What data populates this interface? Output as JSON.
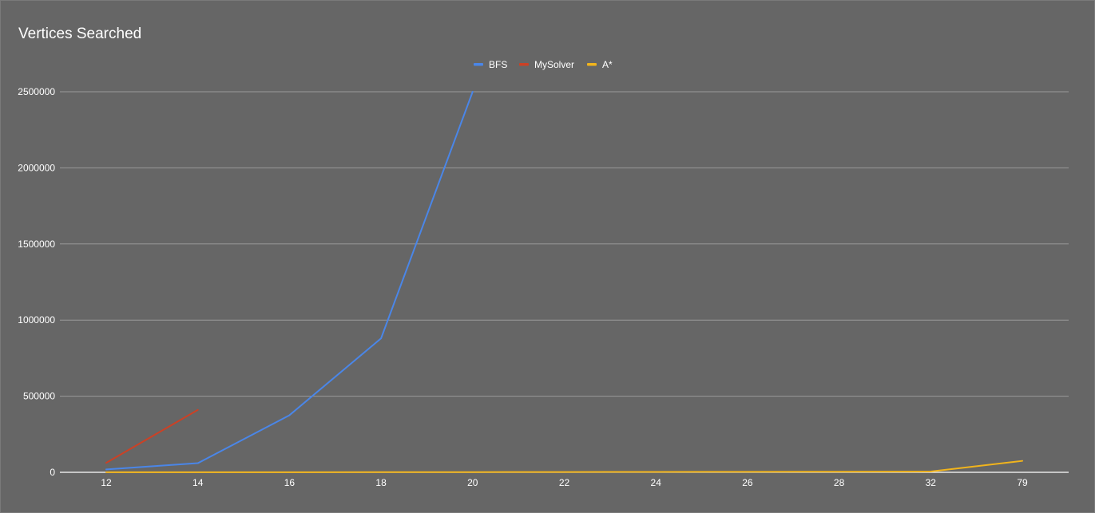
{
  "chart_data": {
    "type": "line",
    "title": "Vertices Searched",
    "xlabel": "",
    "ylabel": "",
    "categories": [
      "12",
      "14",
      "16",
      "18",
      "20",
      "22",
      "24",
      "26",
      "28",
      "32",
      "79"
    ],
    "ylim": [
      0,
      2500000
    ],
    "yticks": [
      0,
      500000,
      1000000,
      1500000,
      2000000,
      2500000
    ],
    "ytick_labels": [
      "0",
      "500000",
      "1000000",
      "1500000",
      "2000000",
      "2500000"
    ],
    "grid": true,
    "legend_position": "top-center",
    "background_color": "#666666",
    "series": [
      {
        "name": "BFS",
        "color": "#4a86e8",
        "values": [
          19000,
          60000,
          375000,
          880000,
          2500000,
          null,
          null,
          null,
          null,
          null,
          null
        ]
      },
      {
        "name": "MySolver",
        "color": "#cc4125",
        "values": [
          62000,
          410000,
          null,
          null,
          null,
          null,
          null,
          null,
          null,
          null,
          null
        ]
      },
      {
        "name": "A*",
        "color": "#f1b41c",
        "values": [
          400,
          600,
          900,
          1200,
          1600,
          2200,
          2800,
          3500,
          4200,
          5000,
          75000
        ]
      }
    ]
  }
}
